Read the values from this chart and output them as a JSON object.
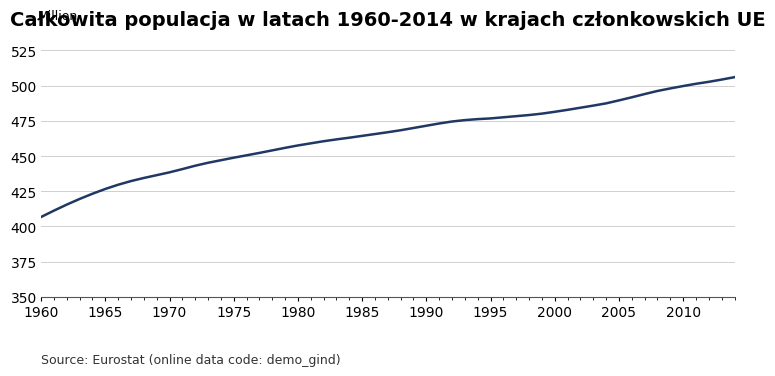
{
  "title": "Całkowita populacja w latach 1960-2014 w krajach członkowskich UE",
  "ylabel": "Million",
  "source": "Source: Eurostat (online data code: demo_gind)",
  "line_color": "#1f3864",
  "background_color": "#ffffff",
  "xlim": [
    1960,
    2014
  ],
  "ylim": [
    350,
    535
  ],
  "yticks": [
    350,
    375,
    400,
    425,
    450,
    475,
    500,
    525
  ],
  "xticks": [
    1960,
    1965,
    1970,
    1975,
    1980,
    1985,
    1990,
    1995,
    2000,
    2005,
    2010
  ],
  "years": [
    1960,
    1961,
    1962,
    1963,
    1964,
    1965,
    1966,
    1967,
    1968,
    1969,
    1970,
    1971,
    1972,
    1973,
    1974,
    1975,
    1976,
    1977,
    1978,
    1979,
    1980,
    1981,
    1982,
    1983,
    1984,
    1985,
    1986,
    1987,
    1988,
    1989,
    1990,
    1991,
    1992,
    1993,
    1994,
    1995,
    1996,
    1997,
    1998,
    1999,
    2000,
    2001,
    2002,
    2003,
    2004,
    2005,
    2006,
    2007,
    2008,
    2009,
    2010,
    2011,
    2012,
    2013,
    2014
  ],
  "population": [
    406.7,
    411.2,
    415.5,
    419.5,
    423.2,
    426.6,
    429.6,
    432.2,
    434.4,
    436.4,
    438.4,
    440.7,
    443.1,
    445.2,
    447.0,
    448.8,
    450.5,
    452.2,
    454.0,
    455.8,
    457.5,
    459.0,
    460.5,
    461.8,
    463.0,
    464.3,
    465.6,
    466.9,
    468.3,
    469.9,
    471.5,
    473.1,
    474.5,
    475.5,
    476.2,
    476.7,
    477.5,
    478.3,
    479.1,
    480.1,
    481.4,
    482.8,
    484.3,
    485.8,
    487.4,
    489.5,
    491.7,
    494.0,
    496.2,
    498.0,
    499.7,
    501.3,
    502.7,
    504.3,
    506.0
  ],
  "title_fontsize": 14,
  "tick_fontsize": 10,
  "source_fontsize": 9,
  "ylabel_fontsize": 9,
  "linewidth": 1.8
}
